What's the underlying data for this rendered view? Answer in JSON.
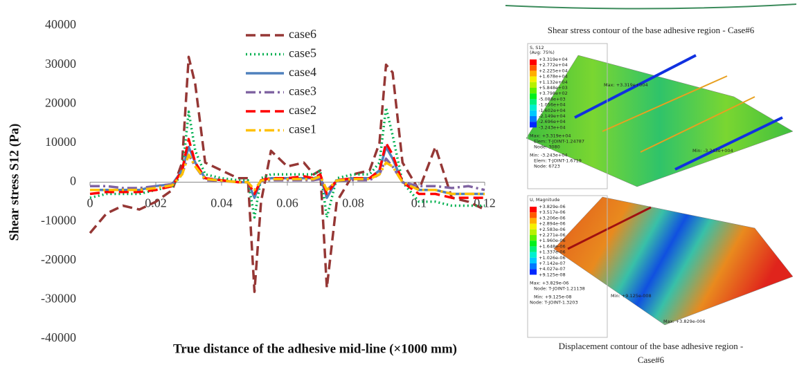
{
  "chart_data": {
    "type": "line",
    "xlabel": "True distance of the adhesive mid-line (×1000 mm)",
    "ylabel": "Shear stress S12 (Pa)",
    "x": [
      0,
      0.005,
      0.01,
      0.015,
      0.02,
      0.025,
      0.028,
      0.03,
      0.032,
      0.035,
      0.04,
      0.045,
      0.048,
      0.05,
      0.052,
      0.055,
      0.06,
      0.065,
      0.068,
      0.07,
      0.072,
      0.075,
      0.08,
      0.085,
      0.088,
      0.09,
      0.092,
      0.095,
      0.1,
      0.105,
      0.11,
      0.115,
      0.12
    ],
    "series": [
      {
        "name": "case6",
        "color": "#953735",
        "dash": "dashed",
        "values": [
          -13000,
          -8000,
          -6000,
          -7000,
          -5000,
          -2000,
          5000,
          32000,
          25000,
          5000,
          3000,
          1000,
          1000,
          -28000,
          -5000,
          8000,
          4000,
          5000,
          2000,
          3000,
          -27000,
          -5000,
          2000,
          3000,
          10000,
          30000,
          28000,
          5000,
          -2000,
          9000,
          -4000,
          -5000,
          -7000
        ]
      },
      {
        "name": "case5",
        "color": "#00b050",
        "dash": "dotted",
        "values": [
          -4000,
          -3000,
          -3000,
          -3000,
          -2000,
          -1000,
          2000,
          18000,
          8000,
          2000,
          1000,
          500,
          500,
          -9000,
          1000,
          2000,
          2000,
          2000,
          2000,
          3000,
          -9000,
          1000,
          2000,
          2000,
          5000,
          19000,
          12000,
          0,
          -5000,
          -5000,
          -6000,
          -6000,
          -6000
        ]
      },
      {
        "name": "case4",
        "color": "#4f81bd",
        "dash": "solid",
        "values": [
          -2000,
          -2000,
          -2000,
          -2000,
          -1000,
          -500,
          3000,
          9000,
          5000,
          1000,
          500,
          0,
          0,
          -4000,
          500,
          1000,
          1000,
          1000,
          1000,
          1500,
          -4000,
          500,
          1000,
          1000,
          3000,
          9000,
          6000,
          0,
          -2000,
          -2000,
          -3000,
          -3000,
          -3000
        ]
      },
      {
        "name": "case3",
        "color": "#8064a2",
        "dash": "dashdot",
        "values": [
          -1000,
          -1000,
          -1500,
          -1500,
          -1000,
          -500,
          2000,
          7000,
          4000,
          500,
          300,
          0,
          0,
          -2000,
          300,
          500,
          500,
          500,
          500,
          800,
          -2000,
          300,
          500,
          500,
          2000,
          6000,
          4000,
          0,
          -1000,
          -1000,
          -1500,
          -1000,
          -2000
        ]
      },
      {
        "name": "case2",
        "color": "#ff0000",
        "dash": "dashed",
        "values": [
          -3000,
          -2500,
          -2500,
          -2500,
          -2000,
          -1000,
          3000,
          11000,
          5000,
          1000,
          500,
          0,
          0,
          -3000,
          500,
          1000,
          1000,
          1500,
          1000,
          2000,
          -3000,
          500,
          1000,
          1000,
          3000,
          10000,
          7000,
          0,
          -3000,
          -3000,
          -4000,
          -4000,
          -4000
        ]
      },
      {
        "name": "case1",
        "color": "#ffc000",
        "dash": "dashdot",
        "values": [
          -2000,
          -2000,
          -2000,
          -2000,
          -1500,
          -800,
          2000,
          7000,
          4000,
          800,
          400,
          0,
          0,
          -2000,
          400,
          800,
          800,
          800,
          800,
          1500,
          -2000,
          400,
          800,
          800,
          2000,
          5000,
          4000,
          0,
          -2000,
          -2000,
          -3000,
          -3000,
          -3000
        ]
      }
    ],
    "xlim": [
      0,
      0.12
    ],
    "xticks": [
      0,
      0.02,
      0.04,
      0.06,
      0.08,
      0.1,
      0.12
    ],
    "ylim": [
      -40000,
      40000
    ],
    "yticks": [
      -40000,
      -30000,
      -20000,
      -10000,
      0,
      10000,
      20000,
      30000,
      40000
    ],
    "legend": "upper center"
  },
  "panels": [
    {
      "caption": [
        "Shear stress contour of the base adhesive region - Case#6"
      ],
      "legend_title": [
        "S, S12",
        "(Avg: 75%)"
      ],
      "legend_values": [
        "+3.319e+04",
        "+2.772e+04",
        "+2.225e+04",
        "+1.678e+04",
        "+1.132e+04",
        "+5.848e+03",
        "+3.798e+02",
        "-5.088e+03",
        "-1.056e+04",
        "-1.602e+04",
        "-2.149e+04",
        "-2.696e+04",
        "-3.243e+04"
      ],
      "info": [
        "Max: +3.319e+04",
        "Elem: T-JOINT-1.24787",
        "Node: 3080",
        "Min: -3.243e+04",
        "Elem: T-JOINT-1.6719",
        "Node: 6723"
      ],
      "markers": [
        "Max: +3.319e+004",
        "Min: -3.243e+004"
      ]
    },
    {
      "caption": [
        "Displacement contour of the base adhesive region -",
        "Case#6"
      ],
      "legend_title": [
        "U, Magnitude"
      ],
      "legend_values": [
        "+3.829e-06",
        "+3.517e-06",
        "+3.206e-06",
        "+2.894e-06",
        "+2.583e-06",
        "+2.271e-06",
        "+1.960e-06",
        "+1.648e-06",
        "+1.337e-06",
        "+1.026e-06",
        "+7.142e-07",
        "+4.027e-07",
        "+9.125e-08"
      ],
      "info": [
        "Max: +3.829e-06",
        "Node: T-JOINT-1.21138",
        "Min: +9.125e-08",
        "Node: T-JOINT-1.3203"
      ],
      "markers": [
        "Min: +9.125e-008",
        "Max: +3.829e-006"
      ]
    }
  ]
}
